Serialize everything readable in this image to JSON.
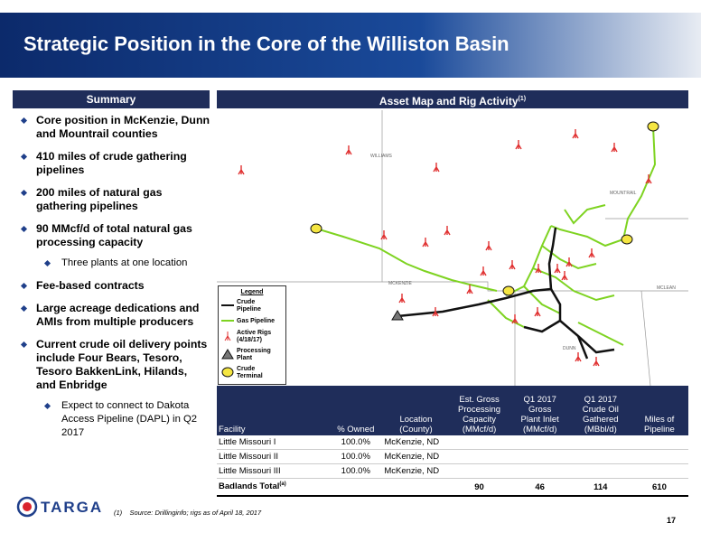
{
  "header": {
    "title": "Strategic Position in the Core of the Williston Basin"
  },
  "summary": {
    "title": "Summary",
    "bullets": [
      {
        "text": "Core position in McKenzie, Dunn and Mountrail counties",
        "level": 1
      },
      {
        "text": "410 miles of crude gathering pipelines",
        "level": 1
      },
      {
        "text": "200 miles of natural gas gathering pipelines",
        "level": 1
      },
      {
        "text": "90 MMcf/d of total natural gas processing capacity",
        "level": 1
      },
      {
        "text": "Three plants at one location",
        "level": 2
      },
      {
        "text": "Fee-based contracts",
        "level": 1
      },
      {
        "text": "Large acreage dedications and AMIs from multiple producers",
        "level": 1
      },
      {
        "text": "Current crude oil delivery points include Four Bears, Tesoro, Tesoro BakkenLink, Hilands, and Enbridge",
        "level": 1
      },
      {
        "text": "Expect to connect to Dakota Access Pipeline (DAPL) in Q2 2017",
        "level": 2
      }
    ]
  },
  "map": {
    "title": "Asset Map and Rig Activity",
    "title_note": "(1)",
    "counties": [
      "WILLIAMS",
      "MOUNTRAIL",
      "MCKENZIE",
      "DUNN",
      "MCLEAN"
    ],
    "legend": {
      "title": "Legend",
      "items": [
        "Crude Pipeline",
        "Gas Pipeline",
        "Active Rigs (4/18/17)",
        "Processing Plant",
        "Crude Terminal"
      ]
    }
  },
  "table": {
    "headers": [
      [
        "Facility"
      ],
      [
        "% Owned"
      ],
      [
        "Location",
        "(County)"
      ],
      [
        "Est. Gross",
        "Processing",
        "Capacity",
        "(MMcf/d)"
      ],
      [
        "Q1 2017",
        "Gross",
        "Plant Inlet",
        "(MMcf/d)"
      ],
      [
        "Q1 2017",
        "Crude Oil",
        "Gathered",
        "(MBbl/d)"
      ],
      [
        "Miles of",
        "Pipeline"
      ]
    ],
    "rows": [
      [
        "Little Missouri I",
        "100.0%",
        "McKenzie, ND"
      ],
      [
        "Little Missouri II",
        "100.0%",
        "McKenzie, ND"
      ],
      [
        "Little Missouri III",
        "100.0%",
        "McKenzie, ND"
      ]
    ],
    "total": {
      "label": "Badlands Total",
      "note": "(a)",
      "values": [
        90,
        46,
        114,
        610
      ]
    }
  },
  "footer": {
    "logo": "TARGA",
    "footnote_mark": "(1)",
    "footnote": "Source: Drillinginfo; rigs as of April 18, 2017",
    "page": "17"
  }
}
